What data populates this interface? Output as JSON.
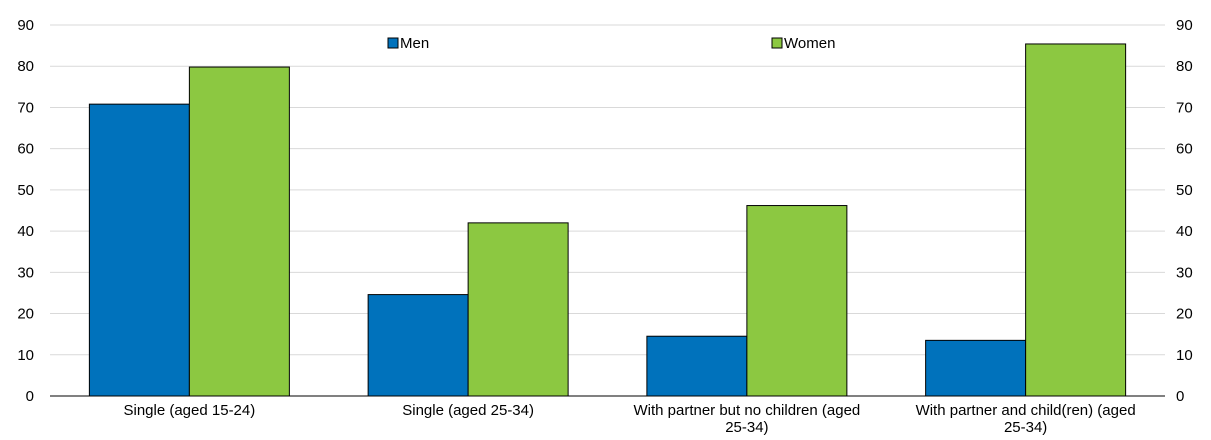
{
  "chart_data": {
    "type": "bar",
    "categories": [
      [
        "Single (aged 15-24)"
      ],
      [
        "Single (aged 25-34)"
      ],
      [
        "With partner but no children (aged",
        "25-34)"
      ],
      [
        "With partner and child(ren) (aged",
        "25-34)"
      ]
    ],
    "series": [
      {
        "name": "Men",
        "color": "#0072bc",
        "values": [
          70.8,
          24.6,
          14.5,
          13.5
        ]
      },
      {
        "name": "Women",
        "color": "#8cc841",
        "values": [
          79.8,
          42.0,
          46.2,
          85.4
        ]
      }
    ],
    "ylim": [
      0,
      90
    ],
    "yticks": [
      0,
      10,
      20,
      30,
      40,
      50,
      60,
      70,
      80,
      90
    ],
    "right_axis_ticks": [
      "0",
      "10",
      "20",
      "30",
      "40",
      "50",
      "60",
      "70",
      "80",
      "90"
    ],
    "grid": true,
    "legend_placement": "top"
  }
}
